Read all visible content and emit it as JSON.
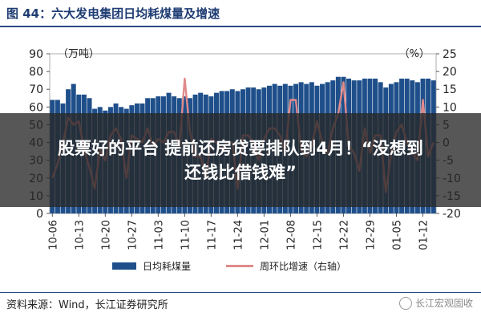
{
  "figure": {
    "title": "图 44：六大发电集团日均耗煤量及增速",
    "source": "资料来源：Wind，长江证券研究所",
    "watermark": "长江宏观固收"
  },
  "banner": {
    "line1": "股票好的平台 提前还房贷要排队到4月！“没想到",
    "line2": "还钱比借钱难”"
  },
  "colors": {
    "bar": "#1f4f8a",
    "line": "#e08a8a",
    "axis": "#555555"
  },
  "chart_data": {
    "type": "bar",
    "title": "",
    "left_axis_unit": "（万吨）",
    "right_axis_unit": "（%）",
    "ylim_left": [
      0,
      90
    ],
    "yticks_left": [
      0,
      10,
      20,
      30,
      40,
      50,
      60,
      70,
      80,
      90
    ],
    "ylim_right": [
      -20,
      25
    ],
    "yticks_right": [
      -20,
      -15,
      -10,
      -5,
      0,
      5,
      10,
      15,
      20,
      25
    ],
    "x_tick_labels": [
      "10-06",
      "10-13",
      "10-20",
      "10-27",
      "11-03",
      "11-10",
      "11-17",
      "11-24",
      "12-01",
      "12-08",
      "12-15",
      "12-22",
      "12-29",
      "01-05",
      "01-12"
    ],
    "x_ticks_at_index": [
      0,
      5,
      10,
      15,
      20,
      25,
      30,
      35,
      40,
      45,
      50,
      55,
      60,
      65,
      70
    ],
    "series": [
      {
        "name": "日均耗煤量",
        "type": "bar",
        "axis": "left",
        "values": [
          64,
          64,
          62,
          70,
          73,
          67,
          67,
          65,
          59,
          60,
          58,
          60,
          62,
          60,
          59,
          61,
          62,
          62,
          65,
          65,
          66,
          66,
          68,
          66,
          65,
          66,
          65,
          67,
          68,
          67,
          66,
          68,
          69,
          69,
          70,
          69,
          70,
          71,
          71,
          70,
          71,
          72,
          73,
          72,
          73,
          72,
          73,
          74,
          73,
          74,
          72,
          73,
          74,
          75,
          77,
          77,
          76,
          75,
          75,
          76,
          76,
          76,
          74,
          71,
          73,
          74,
          76,
          76,
          75,
          74,
          76,
          76,
          75
        ]
      },
      {
        "name": "周环比增速（右轴）",
        "type": "line",
        "axis": "right",
        "values": [
          -10,
          -6,
          0,
          7,
          5,
          6,
          -2,
          -7,
          -13,
          -2,
          -5,
          2,
          4,
          1,
          -10,
          2,
          1,
          0,
          4,
          -1,
          1,
          0,
          3,
          3,
          -1,
          18,
          3,
          -4,
          -4,
          -10,
          1,
          0,
          -2,
          0,
          0,
          -13,
          2,
          2,
          0,
          -5,
          1,
          4,
          4,
          2,
          -3,
          12,
          12,
          -2,
          -4,
          -1,
          6,
          0,
          -3,
          4,
          8,
          17,
          -1,
          -3,
          -8,
          4,
          -3,
          2,
          2,
          -14,
          -3,
          3,
          5,
          0,
          -3,
          -5,
          12,
          -4,
          0
        ]
      }
    ],
    "legend": [
      "日均耗煤量",
      "周环比增速（右轴）"
    ],
    "legend_position": "bottom"
  }
}
